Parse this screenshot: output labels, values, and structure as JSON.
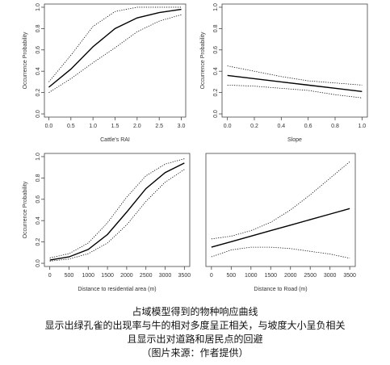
{
  "chart_data": [
    {
      "type": "line",
      "xlabel": "Cattle's RAI",
      "ylabel": "Occurrence Probability",
      "x": [
        0,
        0.5,
        1,
        1.5,
        2,
        2.5,
        3
      ],
      "series": [
        {
          "color": "#000000",
          "style": "solid",
          "values": [
            0.25,
            0.42,
            0.63,
            0.8,
            0.9,
            0.95,
            0.98
          ]
        },
        {
          "color": "#000000",
          "style": "dotted",
          "values": [
            0.3,
            0.55,
            0.82,
            0.96,
            1.0,
            1.0,
            1.0
          ]
        },
        {
          "color": "#000000",
          "style": "dotted",
          "values": [
            0.2,
            0.33,
            0.48,
            0.62,
            0.77,
            0.87,
            0.93
          ]
        }
      ],
      "xlim": [
        -0.1,
        3.1
      ],
      "ylim": [
        -0.03,
        1.03
      ],
      "xticks": [
        {
          "value": 0,
          "label": "0.0"
        },
        {
          "value": 0.5,
          "label": "0.5"
        },
        {
          "value": 1,
          "label": "1.0"
        },
        {
          "value": 1.5,
          "label": "1.5"
        },
        {
          "value": 2,
          "label": "2.0"
        },
        {
          "value": 2.5,
          "label": "2.5"
        },
        {
          "value": 3,
          "label": "3.0"
        }
      ],
      "yticks": [
        {
          "value": 0,
          "label": "0.0"
        },
        0.2,
        0.4,
        0.6,
        0.8,
        {
          "value": 1,
          "label": "1.0"
        }
      ]
    },
    {
      "type": "line",
      "xlabel": "Slope",
      "ylabel": "Occurrence Probability",
      "x": [
        0,
        0.2,
        0.4,
        0.6,
        0.8,
        1
      ],
      "series": [
        {
          "color": "#000000",
          "style": "solid",
          "values": [
            0.36,
            0.33,
            0.3,
            0.27,
            0.24,
            0.21
          ]
        },
        {
          "color": "#000000",
          "style": "dotted",
          "values": [
            0.45,
            0.4,
            0.35,
            0.31,
            0.29,
            0.27
          ]
        },
        {
          "color": "#000000",
          "style": "dotted",
          "values": [
            0.27,
            0.26,
            0.24,
            0.22,
            0.18,
            0.15
          ]
        }
      ],
      "xlim": [
        -0.04,
        1.04
      ],
      "ylim": [
        -0.03,
        1.03
      ],
      "xticks": [
        {
          "value": 0,
          "label": "0.0"
        },
        0.2,
        0.4,
        0.6,
        0.8,
        {
          "value": 1,
          "label": "1.0"
        }
      ],
      "yticks": [
        {
          "value": 0,
          "label": "0.0"
        },
        0.2,
        0.4,
        0.6,
        0.8,
        {
          "value": 1,
          "label": "1.0"
        }
      ]
    },
    {
      "type": "line",
      "xlabel": "Distance to residential area (m)",
      "ylabel": "Occurrence Probability",
      "x": [
        0,
        500,
        1000,
        1500,
        2000,
        2500,
        3000,
        3500
      ],
      "series": [
        {
          "color": "#000000",
          "style": "solid",
          "values": [
            0.03,
            0.06,
            0.13,
            0.27,
            0.48,
            0.7,
            0.85,
            0.94
          ]
        },
        {
          "color": "#000000",
          "style": "dotted",
          "values": [
            0.05,
            0.09,
            0.19,
            0.38,
            0.62,
            0.82,
            0.93,
            0.98
          ]
        },
        {
          "color": "#000000",
          "style": "dotted",
          "values": [
            0.02,
            0.04,
            0.09,
            0.19,
            0.36,
            0.58,
            0.76,
            0.88
          ]
        }
      ],
      "xlim": [
        -140,
        3640
      ],
      "ylim": [
        -0.03,
        1.03
      ],
      "xticks": [
        0,
        500,
        1000,
        1500,
        2000,
        2500,
        3000,
        3500
      ],
      "yticks": [
        {
          "value": 0,
          "label": "0.0"
        },
        0.2,
        0.4,
        0.6,
        0.8,
        {
          "value": 1,
          "label": "1.0"
        }
      ]
    },
    {
      "type": "line",
      "xlabel": "Distance to Road (m)",
      "x": [
        0,
        500,
        1000,
        1500,
        2000,
        2500,
        3000,
        3500
      ],
      "series": [
        {
          "color": "#000000",
          "style": "solid",
          "values": [
            0.24,
            0.28,
            0.32,
            0.36,
            0.4,
            0.44,
            0.48,
            0.52
          ]
        },
        {
          "color": "#000000",
          "style": "dotted",
          "values": [
            0.3,
            0.32,
            0.36,
            0.42,
            0.51,
            0.62,
            0.74,
            0.86
          ]
        },
        {
          "color": "#000000",
          "style": "dotted",
          "values": [
            0.17,
            0.22,
            0.24,
            0.24,
            0.23,
            0.21,
            0.19,
            0.16
          ]
        }
      ],
      "xlim": [
        -140,
        3640
      ],
      "ylim": [
        0.1,
        0.92
      ],
      "xticks": [
        0,
        500,
        1000,
        1500,
        2000,
        2500,
        3000,
        3500
      ]
    }
  ],
  "caption": [
    "占域模型得到的物种响应曲线",
    "显示出绿孔雀的出现率与牛的相对多度呈正相关，与坡度大小呈负相关",
    "且显示出对道路和居民点的回避",
    "（图片来源：作者提供）"
  ]
}
